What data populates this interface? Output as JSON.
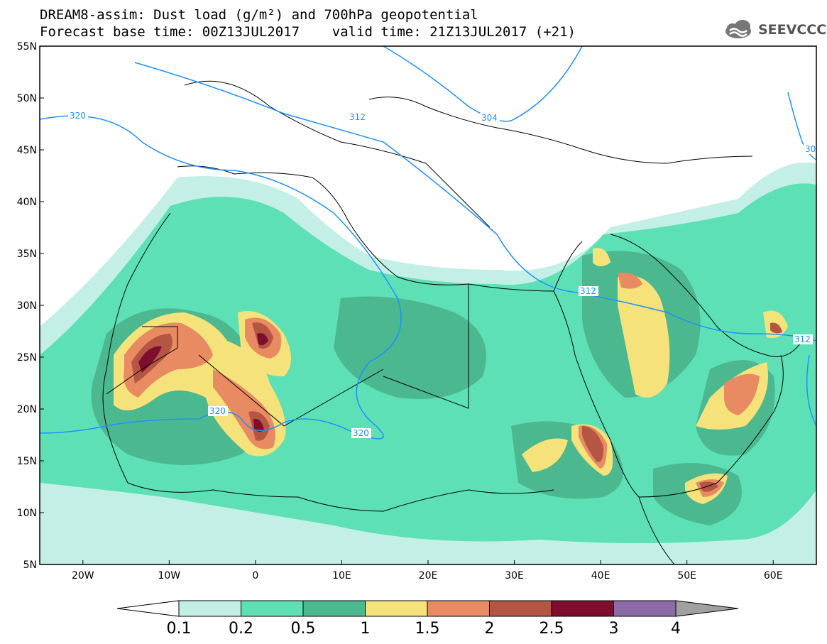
{
  "title": {
    "line1": "DREAM8-assim: Dust load (g/m²) and 700hPa geopotential",
    "line2": "Forecast base time: 00Z13JUL2017    valid time: 21Z13JUL2017 (+21)"
  },
  "logo": {
    "text": "SEEVCCC",
    "icon": "cloud-logo-icon"
  },
  "axes": {
    "lat_labels": [
      "55N",
      "50N",
      "45N",
      "40N",
      "35N",
      "30N",
      "25N",
      "20N",
      "15N",
      "10N",
      "5N"
    ],
    "lon_labels": [
      "20W",
      "10W",
      "0",
      "10E",
      "20E",
      "30E",
      "40E",
      "50E",
      "60E"
    ],
    "lat_range": [
      5,
      55
    ],
    "lon_range": [
      -25,
      65
    ]
  },
  "contour_labels": [
    "320",
    "312",
    "304",
    "320",
    "320",
    "312",
    "312",
    "30"
  ],
  "colorbar": {
    "levels": [
      "0.1",
      "0.2",
      "0.5",
      "1",
      "1.5",
      "2",
      "2.5",
      "3",
      "4"
    ],
    "colors": [
      "#ffffff",
      "#c4efe6",
      "#5de0b5",
      "#4bb88f",
      "#f5e27a",
      "#e88a62",
      "#b55645",
      "#7e0d2e",
      "#8c6ba8",
      "#a0a0a0"
    ]
  }
}
